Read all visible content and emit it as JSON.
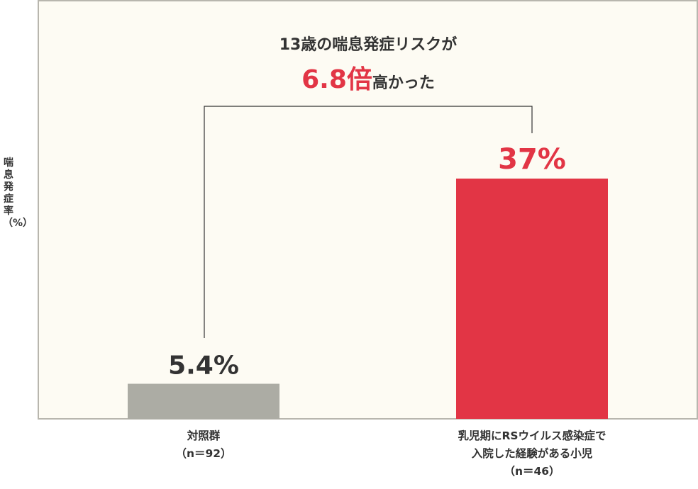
{
  "chart_data": {
    "type": "bar",
    "title_line1": "13歳の喘息発症リスクが",
    "title_highlight": "6.8倍",
    "title_line2_rest": "高かった",
    "ylabel": "喘息発症率（%）",
    "categories": [
      {
        "label_lines": [
          "対照群",
          "（n＝92）"
        ]
      },
      {
        "label_lines": [
          "乳児期にRSウイルス感染症で",
          "入院した経験がある小児",
          "（n＝46）"
        ]
      }
    ],
    "values": [
      5.4,
      37
    ],
    "data_labels": [
      "5.4%",
      "37%"
    ],
    "ylim": [
      0,
      64.5
    ],
    "grid": false,
    "colors": {
      "bars": [
        "#acaca4",
        "#e23545"
      ],
      "data_labels": [
        "#333333",
        "#e23545"
      ],
      "highlight": "#e23545",
      "plot_background": "#fdfbf3",
      "frame": "#b8b6ae"
    }
  }
}
